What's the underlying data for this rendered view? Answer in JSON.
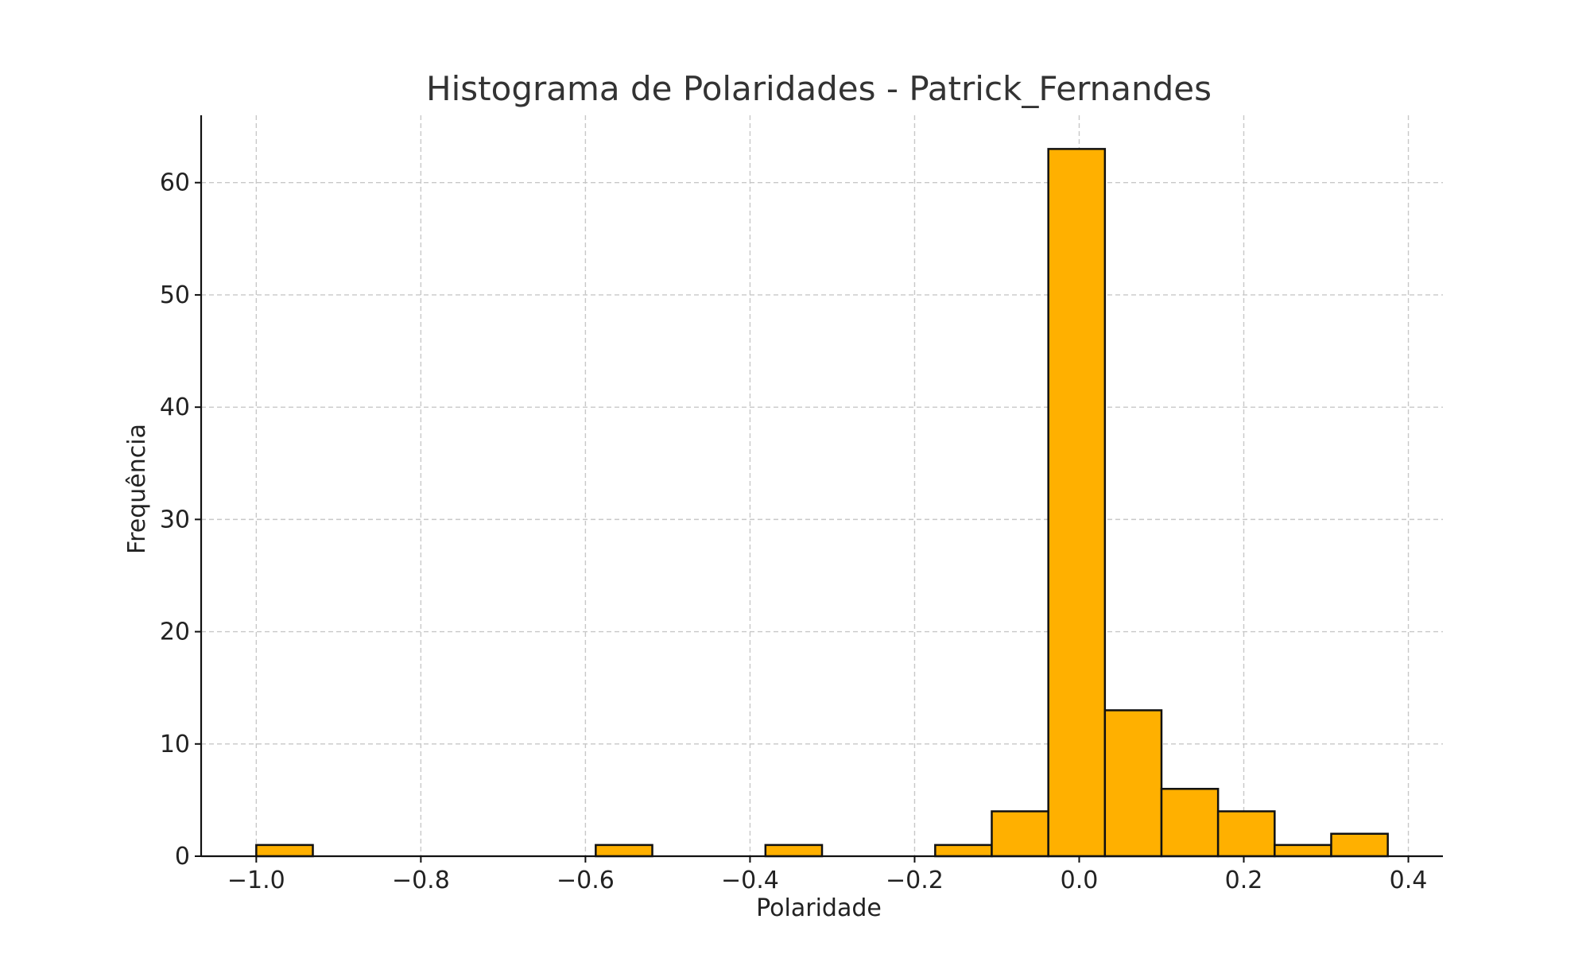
{
  "chart_data": {
    "type": "bar",
    "title": "Histograma de Polaridades - Patrick_Fernandes",
    "xlabel": "Polaridade",
    "ylabel": "Frequência",
    "xlim": [
      -1.067,
      0.442
    ],
    "ylim": [
      0,
      66
    ],
    "x_ticks": [
      {
        "value": -1.0,
        "label": "−1.0"
      },
      {
        "value": -0.8,
        "label": "−0.8"
      },
      {
        "value": -0.6,
        "label": "−0.6"
      },
      {
        "value": -0.4,
        "label": "−0.4"
      },
      {
        "value": -0.2,
        "label": "−0.2"
      },
      {
        "value": 0.0,
        "label": "0.0"
      },
      {
        "value": 0.2,
        "label": "0.2"
      },
      {
        "value": 0.4,
        "label": "0.4"
      }
    ],
    "y_ticks": [
      {
        "value": 0,
        "label": "0"
      },
      {
        "value": 10,
        "label": "10"
      },
      {
        "value": 20,
        "label": "20"
      },
      {
        "value": 30,
        "label": "30"
      },
      {
        "value": 40,
        "label": "40"
      },
      {
        "value": 50,
        "label": "50"
      },
      {
        "value": 60,
        "label": "60"
      }
    ],
    "bin_edges": [
      -1.0,
      -0.93125,
      -0.8625,
      -0.79375,
      -0.725,
      -0.65625,
      -0.5875,
      -0.51875,
      -0.45,
      -0.38125,
      -0.3125,
      -0.24375,
      -0.175,
      -0.10625,
      -0.0375,
      0.03125,
      0.1,
      0.16875,
      0.2375,
      0.30625,
      0.375
    ],
    "counts": [
      1,
      0,
      0,
      0,
      0,
      0,
      1,
      0,
      0,
      1,
      0,
      0,
      1,
      4,
      63,
      13,
      6,
      4,
      1,
      2
    ],
    "grid": true,
    "colors": {
      "bar_fill": "#ffb000",
      "bar_edge": "#111111",
      "grid": "#c8c8c8"
    }
  }
}
